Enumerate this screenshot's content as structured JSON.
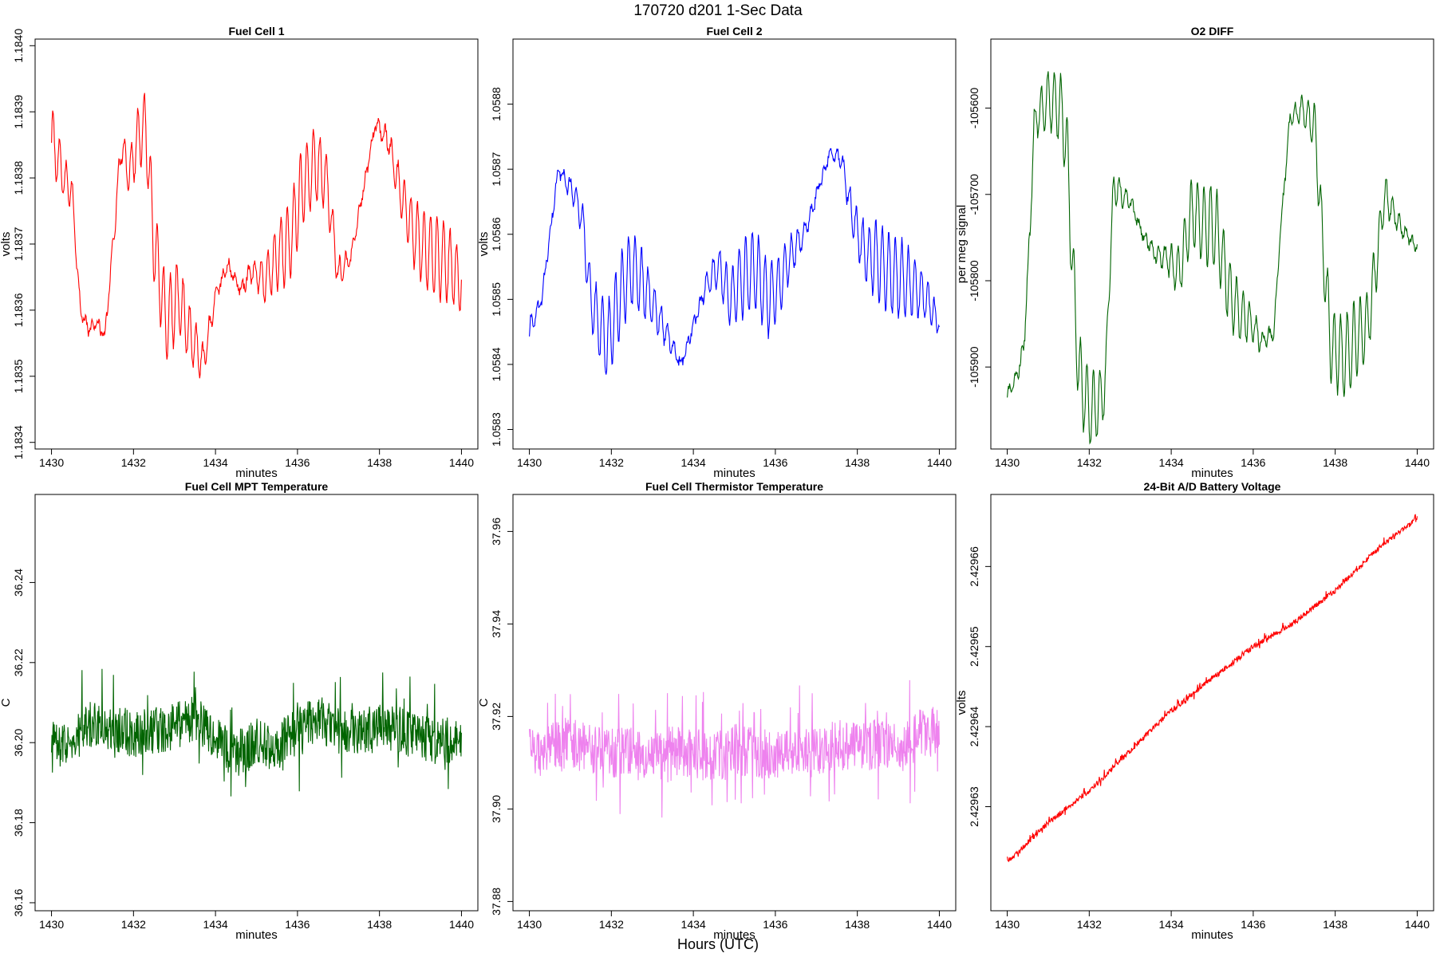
{
  "figure": {
    "title": "170720   d201   1-Sec Data",
    "footer_label": "Hours (UTC)"
  },
  "chart_data": [
    {
      "type": "line",
      "title": "Fuel Cell 1",
      "xlabel": "minutes",
      "ylabel": "volts",
      "color": "#ff0000",
      "xlim": [
        1429.6,
        1440.4
      ],
      "ylim": [
        1.18339,
        1.18401
      ],
      "xticks": [
        1430,
        1432,
        1434,
        1436,
        1438,
        1440
      ],
      "yticks": [
        1.1834,
        1.1835,
        1.1836,
        1.1837,
        1.1838,
        1.1839,
        1.184
      ],
      "ytick_labels": [
        "1.1834",
        "1.1835",
        "1.1836",
        "1.1837",
        "1.1838",
        "1.1839",
        "1.1840"
      ],
      "series": [
        {
          "x": [
            1430.0,
            1430.3,
            1430.5,
            1430.7,
            1430.9,
            1431.1,
            1431.3,
            1431.5,
            1431.7,
            1431.9,
            1432.1,
            1432.3,
            1432.5,
            1432.8,
            1433.1,
            1433.4,
            1433.7,
            1434.0,
            1434.3,
            1434.6,
            1434.9,
            1435.2,
            1435.5,
            1435.8,
            1436.1,
            1436.4,
            1436.7,
            1437.0,
            1437.3,
            1437.6,
            1437.9,
            1438.2,
            1438.5,
            1438.8,
            1439.1,
            1439.4,
            1439.7,
            1440.0
          ],
          "y": [
            1.18386,
            1.1838,
            1.18378,
            1.1836,
            1.18357,
            1.18358,
            1.18356,
            1.1837,
            1.18385,
            1.1838,
            1.18386,
            1.18388,
            1.1837,
            1.18358,
            1.18362,
            1.18356,
            1.18352,
            1.18362,
            1.18367,
            1.18363,
            1.18366,
            1.18364,
            1.18368,
            1.1837,
            1.18378,
            1.18382,
            1.1838,
            1.18365,
            1.18368,
            1.18378,
            1.18388,
            1.18386,
            1.18378,
            1.18372,
            1.18369,
            1.18368,
            1.18367,
            1.18364
          ]
        }
      ]
    },
    {
      "type": "line",
      "title": "Fuel Cell 2",
      "xlabel": "minutes",
      "ylabel": "volts",
      "color": "#0000ff",
      "xlim": [
        1429.6,
        1440.4
      ],
      "ylim": [
        1.05827,
        1.0589
      ],
      "xticks": [
        1430,
        1432,
        1434,
        1436,
        1438,
        1440
      ],
      "yticks": [
        1.0583,
        1.0584,
        1.0585,
        1.0586,
        1.0587,
        1.0588
      ],
      "ytick_labels": [
        "1.0583",
        "1.0584",
        "1.0585",
        "1.0586",
        "1.0587",
        "1.0588"
      ],
      "series": [
        {
          "x": [
            1430.0,
            1430.3,
            1430.5,
            1430.7,
            1430.9,
            1431.1,
            1431.3,
            1431.5,
            1431.7,
            1431.9,
            1432.1,
            1432.3,
            1432.5,
            1432.8,
            1433.1,
            1433.4,
            1433.7,
            1434.0,
            1434.3,
            1434.6,
            1434.9,
            1435.2,
            1435.5,
            1435.8,
            1436.1,
            1436.4,
            1436.7,
            1437.0,
            1437.3,
            1437.6,
            1437.9,
            1438.2,
            1438.5,
            1438.8,
            1439.1,
            1439.4,
            1439.7,
            1440.0
          ],
          "y": [
            1.05845,
            1.0585,
            1.0586,
            1.0587,
            1.05868,
            1.05866,
            1.05862,
            1.0585,
            1.05846,
            1.05843,
            1.05848,
            1.05852,
            1.05855,
            1.05852,
            1.05848,
            1.05844,
            1.0584,
            1.05846,
            1.05852,
            1.05855,
            1.0585,
            1.05853,
            1.05855,
            1.0585,
            1.05852,
            1.05857,
            1.0586,
            1.05866,
            1.05872,
            1.05872,
            1.05862,
            1.05857,
            1.05856,
            1.05854,
            1.05853,
            1.05852,
            1.0585,
            1.05846
          ]
        }
      ]
    },
    {
      "type": "line",
      "title": "O2 DIFF",
      "xlabel": "minutes",
      "ylabel": "per meg signal",
      "color": "#006400",
      "xlim": [
        1429.6,
        1440.4
      ],
      "ylim": [
        -105995,
        -105520
      ],
      "xticks": [
        1430,
        1432,
        1434,
        1436,
        1438,
        1440
      ],
      "yticks": [
        -105900,
        -105800,
        -105700,
        -105600
      ],
      "ytick_labels": [
        "-105900",
        "-105800",
        "-105700",
        "-105600"
      ],
      "series": [
        {
          "x": [
            1430.0,
            1430.2,
            1430.4,
            1430.55,
            1430.65,
            1430.8,
            1431.0,
            1431.3,
            1431.45,
            1431.6,
            1431.75,
            1432.0,
            1432.2,
            1432.4,
            1432.5,
            1432.6,
            1433.0,
            1433.3,
            1433.6,
            1433.9,
            1434.2,
            1434.5,
            1434.8,
            1435.1,
            1435.4,
            1435.7,
            1435.9,
            1436.2,
            1436.5,
            1436.7,
            1436.9,
            1437.2,
            1437.5,
            1437.7,
            1437.9,
            1438.2,
            1438.5,
            1438.8,
            1439.0,
            1439.2,
            1439.5,
            1439.8,
            1440.0
          ],
          "y": [
            -105930,
            -105915,
            -105880,
            -105750,
            -105620,
            -105605,
            -105590,
            -105600,
            -105640,
            -105790,
            -105910,
            -105950,
            -105945,
            -105920,
            -105780,
            -105690,
            -105710,
            -105745,
            -105770,
            -105775,
            -105790,
            -105720,
            -105735,
            -105740,
            -105810,
            -105840,
            -105845,
            -105870,
            -105860,
            -105720,
            -105610,
            -105600,
            -105620,
            -105760,
            -105880,
            -105890,
            -105870,
            -105850,
            -105780,
            -105700,
            -105730,
            -105750,
            -105760
          ]
        }
      ]
    },
    {
      "type": "line",
      "title": "Fuel Cell MPT Temperature",
      "xlabel": "minutes",
      "ylabel": "C",
      "color": "#006400",
      "xlim": [
        1429.6,
        1440.4
      ],
      "ylim": [
        36.158,
        36.262
      ],
      "xticks": [
        1430,
        1432,
        1434,
        1436,
        1438,
        1440
      ],
      "yticks": [
        36.16,
        36.18,
        36.2,
        36.22,
        36.24
      ],
      "ytick_labels": [
        "36.16",
        "36.18",
        "36.20",
        "36.22",
        "36.24"
      ],
      "series": [
        {
          "x": [
            1430,
            1430.5,
            1431,
            1431.5,
            1432,
            1432.5,
            1433,
            1433.5,
            1434,
            1434.5,
            1435,
            1435.5,
            1436,
            1436.5,
            1437,
            1437.5,
            1438,
            1438.5,
            1439,
            1439.5,
            1440
          ],
          "y": [
            36.199,
            36.201,
            36.205,
            36.204,
            36.202,
            36.203,
            36.204,
            36.206,
            36.201,
            36.197,
            36.2,
            36.199,
            36.203,
            36.206,
            36.203,
            36.202,
            36.204,
            36.203,
            36.201,
            36.2,
            36.202
          ],
          "noise": 0.012
        }
      ]
    },
    {
      "type": "line",
      "title": "Fuel Cell Thermistor Temperature",
      "xlabel": "minutes",
      "ylabel": "C",
      "color": "#ee82ee",
      "xlim": [
        1429.6,
        1440.4
      ],
      "ylim": [
        37.878,
        37.968
      ],
      "xticks": [
        1430,
        1432,
        1434,
        1436,
        1438,
        1440
      ],
      "yticks": [
        37.88,
        37.9,
        37.92,
        37.94,
        37.96
      ],
      "ytick_labels": [
        "37.88",
        "37.90",
        "37.92",
        "37.94",
        "37.96"
      ],
      "series": [
        {
          "x": [
            1430,
            1430.5,
            1431,
            1431.5,
            1432,
            1432.5,
            1433,
            1433.5,
            1434,
            1434.5,
            1435,
            1435.5,
            1436,
            1436.5,
            1437,
            1437.5,
            1438,
            1438.5,
            1439,
            1439.5,
            1440
          ],
          "y": [
            37.912,
            37.913,
            37.914,
            37.913,
            37.912,
            37.913,
            37.911,
            37.913,
            37.912,
            37.911,
            37.913,
            37.912,
            37.912,
            37.913,
            37.912,
            37.914,
            37.913,
            37.914,
            37.913,
            37.916,
            37.917
          ],
          "noise": 0.011
        }
      ]
    },
    {
      "type": "line",
      "title": "24-Bit A/D Battery Voltage",
      "xlabel": "minutes",
      "ylabel": "volts",
      "color": "#ff0000",
      "xlim": [
        1429.6,
        1440.4
      ],
      "ylim": [
        2.429617,
        2.429669
      ],
      "xticks": [
        1430,
        1432,
        1434,
        1436,
        1438,
        1440
      ],
      "yticks": [
        2.42963,
        2.42964,
        2.42965,
        2.42966
      ],
      "ytick_labels": [
        "2.42963",
        "2.42964",
        "2.42965",
        "2.42966"
      ],
      "series": [
        {
          "x": [
            1430,
            1431,
            1432,
            1433,
            1434,
            1435,
            1436,
            1437,
            1438,
            1439,
            1440
          ],
          "y": [
            2.429623,
            2.429628,
            2.429632,
            2.429637,
            2.429642,
            2.429646,
            2.42965,
            2.429653,
            2.429657,
            2.429662,
            2.429666
          ],
          "noise": 7e-07
        }
      ]
    }
  ]
}
